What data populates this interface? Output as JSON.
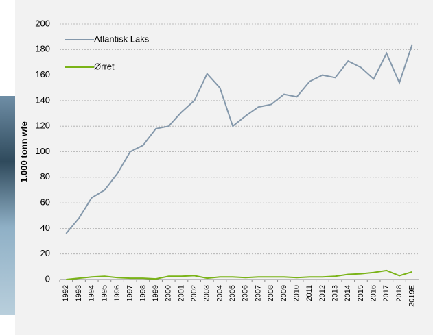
{
  "chart_data": {
    "type": "line",
    "y_label": "1.000 tonn  wfe",
    "categories": [
      "1992",
      "1993",
      "1994",
      "1995",
      "1996",
      "1997",
      "1998",
      "1999",
      "2000",
      "2001",
      "2002",
      "2003",
      "2004",
      "2005",
      "2006",
      "2007",
      "2008",
      "2009",
      "2010",
      "2011",
      "2012",
      "2013",
      "2014",
      "2015",
      "2016",
      "2017",
      "2018",
      "2019E"
    ],
    "series": [
      {
        "name": "Atlantisk Laks",
        "color": "#8498ab",
        "values": [
          36,
          48,
          64,
          70,
          83,
          100,
          105,
          118,
          120,
          131,
          140,
          161,
          150,
          120,
          128,
          135,
          137,
          145,
          143,
          155,
          160,
          158,
          171,
          166,
          157,
          177,
          154,
          184
        ]
      },
      {
        "name": "Ørret",
        "color": "#7ab317",
        "values": [
          0,
          1,
          2,
          2.5,
          1.5,
          1,
          1,
          0.5,
          2.5,
          2.5,
          3,
          1,
          2,
          2,
          1.5,
          2,
          2,
          2,
          1.5,
          2,
          2,
          2.5,
          4,
          4.5,
          5.5,
          7,
          3,
          6
        ]
      }
    ],
    "ylim": [
      0,
      200
    ],
    "yticks": [
      0,
      20,
      40,
      60,
      80,
      100,
      120,
      140,
      160,
      180,
      200
    ],
    "grid": true,
    "legend": "upper-left"
  }
}
